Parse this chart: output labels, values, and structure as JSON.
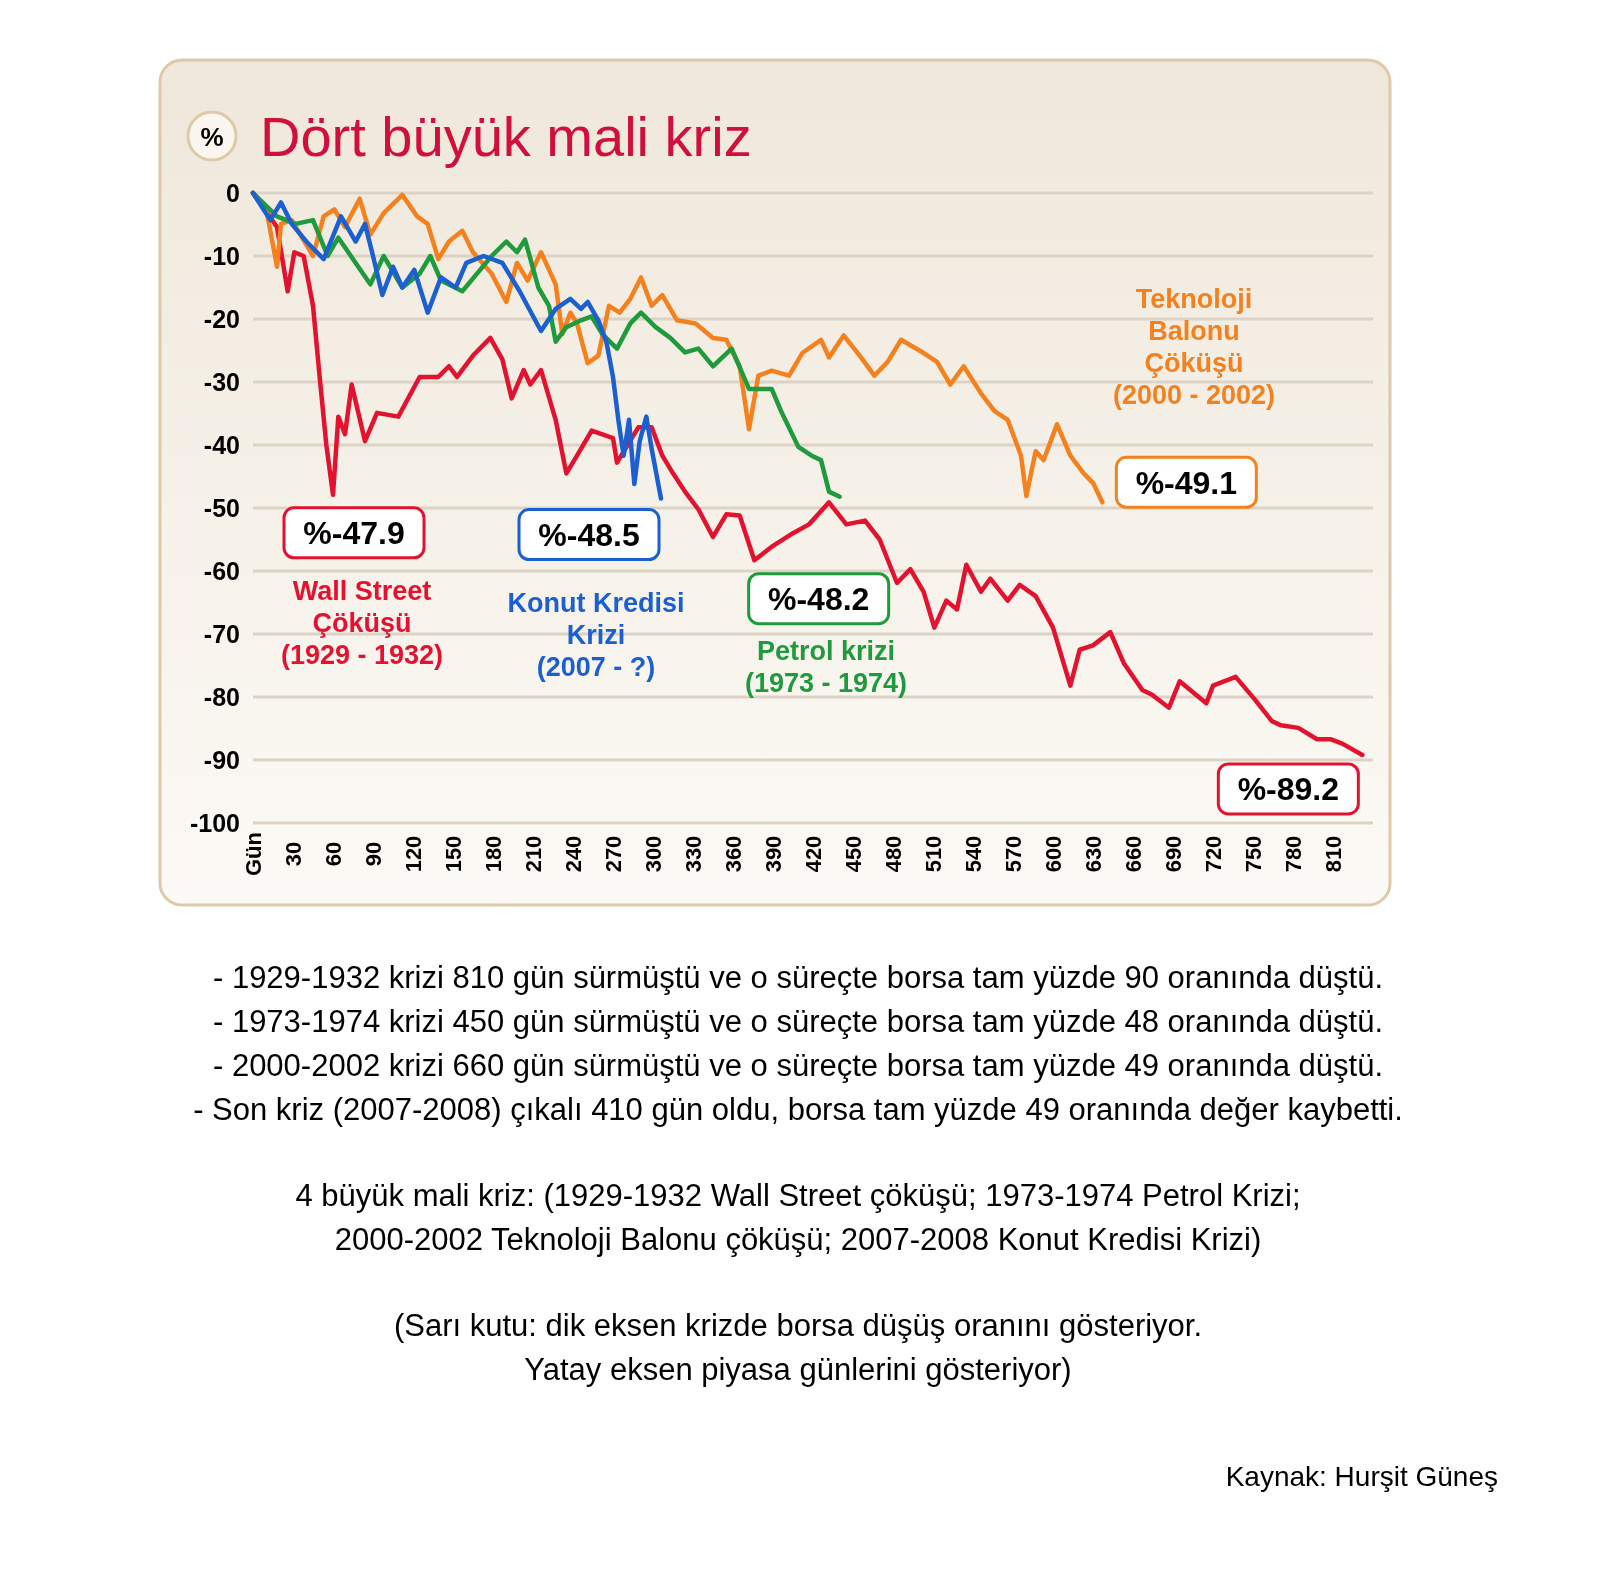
{
  "chart_data": {
    "type": "line",
    "title": "Dört büyük mali kriz",
    "ylabel": "%",
    "xlim": [
      0,
      840
    ],
    "ylim": [
      -100,
      0
    ],
    "xticks": [
      {
        "value": 0,
        "label": "Gün"
      },
      30,
      60,
      90,
      120,
      150,
      180,
      210,
      240,
      270,
      300,
      330,
      360,
      390,
      420,
      450,
      480,
      510,
      540,
      570,
      600,
      630,
      660,
      690,
      720,
      750,
      780,
      810
    ],
    "yticks": [
      0,
      -10,
      -20,
      -30,
      -40,
      -50,
      -60,
      -70,
      -80,
      -90,
      -100
    ],
    "grid": "y",
    "marker": "none",
    "line_style": "solid",
    "series": [
      {
        "name": "Wall Street\nÇöküşü\n(1929 - 1932)",
        "color": "#e3122e",
        "x": [
          0,
          10,
          18,
          26,
          31,
          38,
          45,
          50,
          55,
          60,
          64,
          69,
          74,
          84,
          93,
          109,
          125,
          139,
          147,
          153,
          165,
          178,
          187,
          194,
          203,
          208,
          216,
          227,
          235,
          243,
          254,
          270,
          273,
          289,
          299,
          307,
          315,
          324,
          334,
          345,
          355,
          365,
          376,
          390,
          405,
          417,
          432,
          445,
          459,
          470,
          483,
          493,
          503,
          511,
          520,
          528,
          535,
          546,
          553,
          566,
          575,
          587,
          600,
          613,
          620,
          630,
          643,
          653,
          667,
          674,
          687,
          695,
          707,
          715,
          720,
          737,
          751,
          764,
          771,
          784,
          798,
          808,
          817,
          832
        ],
        "values": [
          0,
          -3,
          -5.4,
          -15.6,
          -9.4,
          -10,
          -17.9,
          -29.2,
          -40,
          -47.9,
          -35.5,
          -38.3,
          -30.4,
          -39.4,
          -34.9,
          -35.5,
          -29.2,
          -29.2,
          -27.5,
          -29.2,
          -25.8,
          -23,
          -26.4,
          -32.6,
          -28.1,
          -30.4,
          -28.1,
          -36,
          -44.5,
          -41.7,
          -37.7,
          -38.9,
          -42.8,
          -37.2,
          -37.2,
          -41.7,
          -44.5,
          -47.4,
          -50.2,
          -54.6,
          -51,
          -51.2,
          -58.3,
          -56,
          -54,
          -52.6,
          -49.1,
          -52.6,
          -52,
          -55,
          -61.9,
          -59.7,
          -63.3,
          -69,
          -64.7,
          -66.1,
          -59,
          -63.3,
          -61.2,
          -64.7,
          -62.2,
          -64,
          -69,
          -78.2,
          -72.5,
          -71.8,
          -69.7,
          -74.6,
          -78.9,
          -79.6,
          -81.7,
          -77.5,
          -79.6,
          -81,
          -78.2,
          -76.8,
          -80.3,
          -83.8,
          -84.5,
          -84.9,
          -86.7,
          -86.7,
          -87.4,
          -89.2
        ]
      },
      {
        "name": "Teknoloji\nBalonu\nÇöküşü\n(2000 - 2002)",
        "color": "#f5801e",
        "x": [
          0,
          10,
          18,
          21,
          29,
          45,
          53,
          61,
          69,
          80,
          88,
          98,
          112,
          123,
          131,
          139,
          147,
          157,
          165,
          179,
          190,
          198,
          206,
          216,
          227,
          232,
          238,
          243,
          251,
          259,
          267,
          275,
          283,
          291,
          299,
          307,
          318,
          332,
          345,
          355,
          365,
          372,
          379,
          389,
          402,
          412,
          426,
          432,
          443,
          456,
          466,
          476,
          486,
          503,
          513,
          523,
          533,
          546,
          556,
          566,
          576,
          580,
          587,
          593,
          603,
          613,
          623,
          630,
          637
        ],
        "values": [
          0,
          -2.6,
          -11.7,
          -4.9,
          -4.3,
          -10,
          -3.7,
          -2.6,
          -5.4,
          -0.9,
          -6.6,
          -3.2,
          -0.3,
          -3.7,
          -4.9,
          -10.5,
          -7.7,
          -6,
          -9.4,
          -12.8,
          -17.3,
          -11.1,
          -13.9,
          -9.4,
          -14.5,
          -22.4,
          -19,
          -20.7,
          -27,
          -25.8,
          -17.9,
          -19,
          -16.8,
          -13.4,
          -17.9,
          -16.2,
          -20.2,
          -20.7,
          -23,
          -23.3,
          -27.5,
          -37.5,
          -29,
          -28.2,
          -29,
          -25.4,
          -23.3,
          -26.1,
          -22.6,
          -26.1,
          -29,
          -26.8,
          -23.3,
          -25.4,
          -26.8,
          -30.4,
          -27.5,
          -31.8,
          -34.6,
          -36,
          -41.7,
          -48.1,
          -41,
          -42.4,
          -36.7,
          -41.7,
          -44.5,
          -46,
          -49.1
        ]
      },
      {
        "name": "Petrol krizi\n(1973 - 1974)",
        "color": "#1f9a3c",
        "x": [
          0,
          18,
          32,
          45,
          56,
          64,
          77,
          88,
          98,
          112,
          125,
          133,
          141,
          157,
          168,
          179,
          190,
          198,
          204,
          214,
          222,
          227,
          235,
          246,
          254,
          262,
          273,
          283,
          291,
          302,
          313,
          324,
          334,
          345,
          359,
          372,
          389,
          396,
          409,
          419,
          426,
          432,
          440
        ],
        "values": [
          0,
          -3.7,
          -4.9,
          -4.3,
          -10,
          -7.1,
          -11.1,
          -14.5,
          -10,
          -15,
          -12.8,
          -10,
          -13.9,
          -15.6,
          -12.8,
          -10,
          -7.7,
          -9.4,
          -7.4,
          -15,
          -17.9,
          -23.6,
          -21.3,
          -20.2,
          -19.6,
          -22.4,
          -24.7,
          -20.7,
          -19,
          -21.3,
          -23,
          -25.3,
          -24.7,
          -27.5,
          -24.7,
          -31.1,
          -31.1,
          -34.6,
          -40.3,
          -41.7,
          -42.4,
          -47.4,
          -48.2
        ]
      },
      {
        "name": "Konut Kredisi\nKrizi\n(2007 - ?)",
        "color": "#1b5fd1",
        "x": [
          0,
          13,
          21,
          29,
          40,
          53,
          66,
          77,
          84,
          90,
          97,
          105,
          112,
          121,
          131,
          141,
          152,
          160,
          173,
          187,
          200,
          216,
          227,
          238,
          246,
          251,
          259,
          265,
          270,
          274,
          278,
          282,
          286,
          290,
          295,
          299,
          306
        ],
        "values": [
          0,
          -4.3,
          -1.5,
          -4.9,
          -7.7,
          -10.5,
          -3.7,
          -7.7,
          -4.9,
          -10,
          -16.2,
          -11.7,
          -15,
          -12.2,
          -19,
          -13.4,
          -15,
          -11.1,
          -10,
          -11.1,
          -15.6,
          -21.9,
          -18.4,
          -16.8,
          -18.4,
          -17.3,
          -20.2,
          -23.6,
          -29.2,
          -36,
          -41.7,
          -36,
          -46.2,
          -39.4,
          -35.5,
          -40.6,
          -48.5
        ]
      }
    ],
    "annotations": [
      {
        "text": "%-47.9",
        "x": 60,
        "y": -47.9
      },
      {
        "text": "%-48.5",
        "x": 306,
        "y": -48.5
      },
      {
        "text": "%-48.2",
        "x": 440,
        "y": -48.2
      },
      {
        "text": "%-49.1",
        "x": 637,
        "y": -49.1
      },
      {
        "text": "%-89.2",
        "x": 832,
        "y": -89.2
      },
      "-  1929-1932 krizi 810 gün sürmüştü ve o süreçte borsa tam yüzde 90 oranında düştü.",
      "-  1973-1974 krizi 450 gün sürmüştü ve o süreçte borsa tam yüzde 48 oranında düştü.",
      "-  2000-2002 krizi 660 gün sürmüştü ve o süreçte borsa tam yüzde 49 oranında düştü.",
      "-  Son kriz (2007-2008) çıkalı 410 gün oldu, borsa tam yüzde 49 oranında değer kaybetti.",
      "4 büyük mali kriz: (1929-1932 Wall Street çöküşü; 1973-1974 Petrol Krizi;",
      "2000-2002 Teknoloji Balonu çöküşü; 2007-2008 Konut Kredisi Krizi)",
      "(Sarı kutu: dik eksen krizde borsa düşüş oranını gösteriyor.",
      "Yatay eksen piyasa günlerini gösteriyor)",
      "Kaynak: Hurşit Güneş"
    ]
  }
}
